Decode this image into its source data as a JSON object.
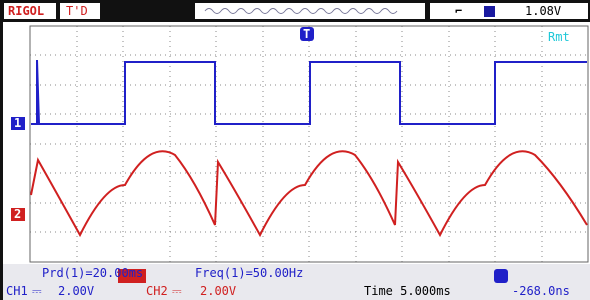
{
  "header": {
    "brand": "RIGOL",
    "trigger_status": "T'D",
    "trigger_level": "1.08V"
  },
  "display": {
    "remote": "Rmt",
    "trigger_marker": "T",
    "ch1_marker": "1",
    "ch2_marker": "2",
    "measure_period": "Prd(1)=20.00ms",
    "measure_freq": "Freq(1)=50.00Hz"
  },
  "footer": {
    "ch1_label": "CH1",
    "ch1_scale": "2.00V",
    "ch2_label": "CH2",
    "ch2_scale": "2.00V",
    "timebase": "Time 5.000ms",
    "trigger_offset": "-268.0ns"
  }
}
